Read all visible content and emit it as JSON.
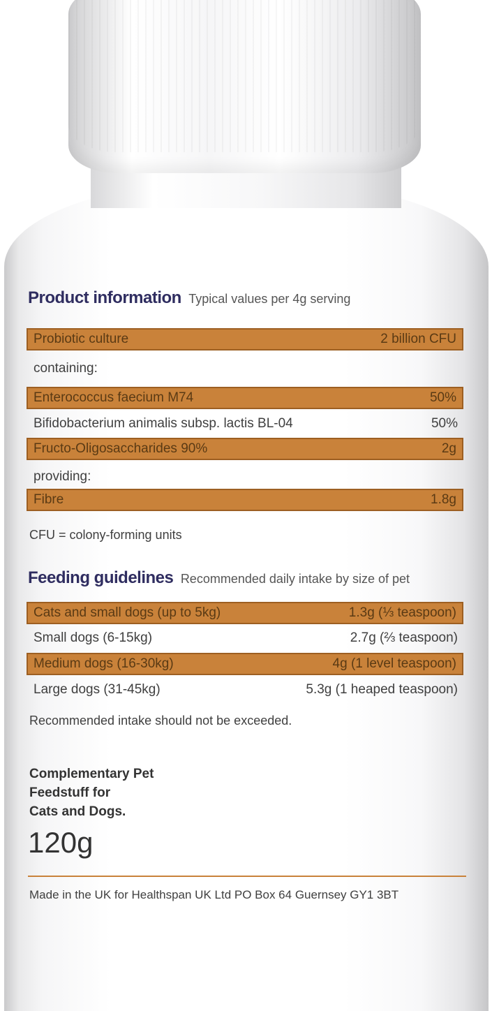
{
  "product_information": {
    "title": "Product information",
    "subtitle": "Typical values per 4g serving",
    "rows": [
      {
        "name": "Probiotic culture",
        "value": "2 billion CFU",
        "band": true
      },
      {
        "name": "containing:",
        "value": "",
        "band": false
      },
      {
        "name": "Enterococcus faecium M74",
        "value": "50%",
        "band": true
      },
      {
        "name": "Bifidobacterium animalis subsp. lactis BL-04",
        "value": "50%",
        "band": false
      },
      {
        "name": "Fructo-Oligosaccharides 90%",
        "value": "2g",
        "band": true
      },
      {
        "name": "providing:",
        "value": "",
        "band": false
      },
      {
        "name": "Fibre",
        "value": "1.8g",
        "band": true
      }
    ],
    "footnote": "CFU = colony-forming units"
  },
  "feeding_guidelines": {
    "title": "Feeding guidelines",
    "subtitle": "Recommended daily intake by size of pet",
    "rows": [
      {
        "name": "Cats and small dogs (up to 5kg)",
        "value": "1.3g (⅓ teaspoon)",
        "band": true
      },
      {
        "name": "Small dogs (6-15kg)",
        "value": "2.7g (⅔ teaspoon)",
        "band": false
      },
      {
        "name": "Medium dogs (16-30kg)",
        "value": "4g (1 level teaspoon)",
        "band": true
      },
      {
        "name": "Large dogs (31-45kg)",
        "value": "5.3g (1 heaped teaspoon)",
        "band": false
      }
    ],
    "footnote": "Recommended intake should not be exceeded."
  },
  "complementary": {
    "line1": "Complementary Pet",
    "line2": "Feedstuff for",
    "line3": "Cats and Dogs."
  },
  "net_weight": "120g",
  "manufacturer": "Made in the UK for Healthspan UK Ltd  PO Box 64  Guernsey  GY1 3BT",
  "colors": {
    "band": "#c9823a",
    "band_border": "#9d5f22",
    "heading": "#2f2d60"
  }
}
